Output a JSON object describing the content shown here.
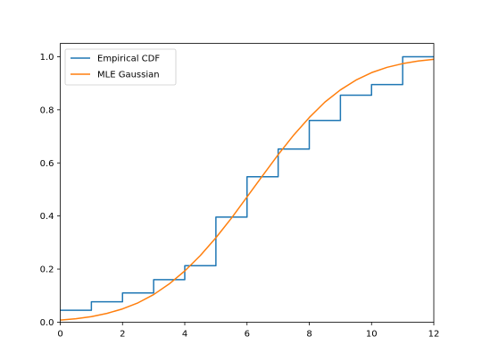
{
  "chart_data": {
    "type": "line",
    "xlim": [
      0,
      12
    ],
    "ylim": [
      0.0,
      1.05
    ],
    "xticks": [
      0,
      2,
      4,
      6,
      8,
      10,
      12
    ],
    "yticks": [
      0.0,
      0.2,
      0.4,
      0.6,
      0.8,
      1.0
    ],
    "xtick_labels": [
      "0",
      "2",
      "4",
      "6",
      "8",
      "10",
      "12"
    ],
    "ytick_labels": [
      "0.0",
      "0.2",
      "0.4",
      "0.6",
      "0.8",
      "1.0"
    ],
    "grid": false,
    "legend_position": "top-left",
    "series": [
      {
        "name": "Empirical CDF",
        "kind": "step",
        "color": "#1f77b4",
        "x": [
          0,
          1,
          1,
          2,
          2,
          3,
          3,
          4,
          4,
          5,
          5,
          6,
          6,
          7,
          7,
          8,
          8,
          9,
          9,
          10,
          10,
          11,
          11,
          12
        ],
        "y": [
          0.045,
          0.045,
          0.077,
          0.077,
          0.11,
          0.11,
          0.16,
          0.16,
          0.213,
          0.213,
          0.396,
          0.396,
          0.548,
          0.548,
          0.652,
          0.652,
          0.76,
          0.76,
          0.855,
          0.855,
          0.895,
          0.895,
          1.0,
          1.0
        ]
      },
      {
        "name": "MLE Gaussian",
        "kind": "line",
        "color": "#ff7f0e",
        "x": [
          0,
          0.5,
          1,
          1.5,
          2,
          2.5,
          3,
          3.5,
          4,
          4.5,
          5,
          5.5,
          6,
          6.5,
          7,
          7.5,
          8,
          8.5,
          9,
          9.5,
          10,
          10.5,
          11,
          11.5,
          12
        ],
        "y": [
          0.008,
          0.013,
          0.021,
          0.033,
          0.05,
          0.073,
          0.104,
          0.144,
          0.193,
          0.251,
          0.318,
          0.392,
          0.472,
          0.552,
          0.631,
          0.705,
          0.771,
          0.829,
          0.875,
          0.912,
          0.94,
          0.96,
          0.974,
          0.984,
          0.99
        ]
      }
    ]
  }
}
